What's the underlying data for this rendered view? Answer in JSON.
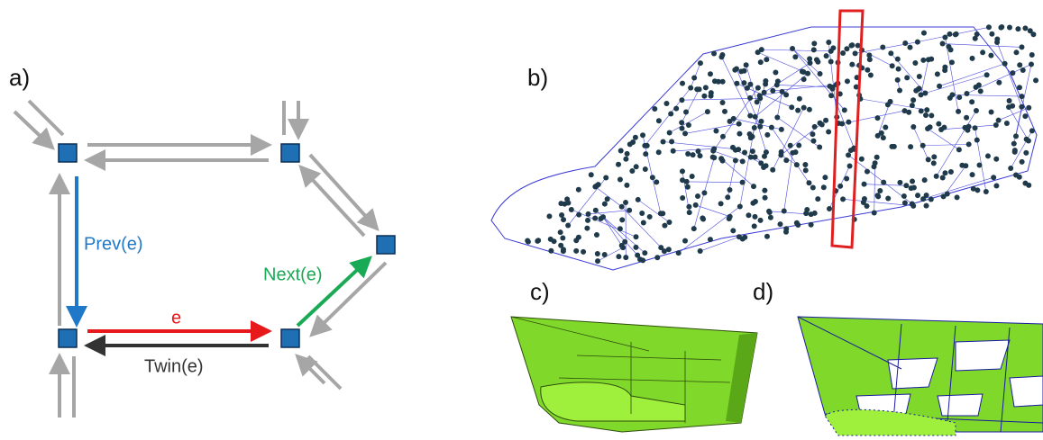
{
  "panels": {
    "a": "a)",
    "b": "b)",
    "c": "c)",
    "d": "d)"
  },
  "edges": {
    "prev": "Prev(e)",
    "next": "Next(e)",
    "e": "e",
    "twin": "Twin(e)"
  }
}
